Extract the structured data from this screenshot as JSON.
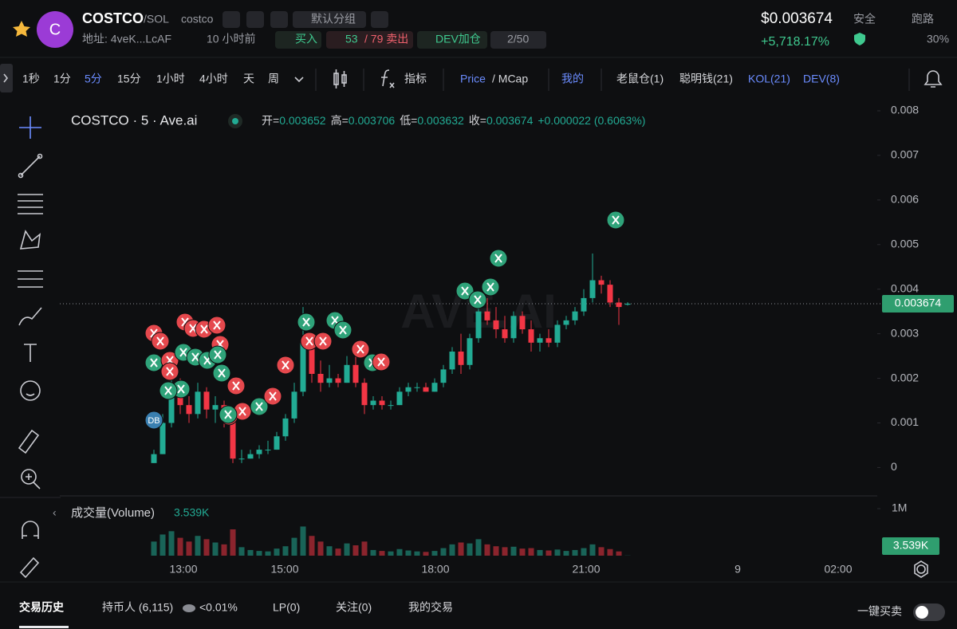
{
  "header": {
    "logo": "C",
    "symbol": "COSTCO",
    "pair": "/SOL",
    "name": "costco",
    "group": "默认分组",
    "address": "地址: 4veK...LcAF",
    "age": "10 小时前",
    "buy": "买入",
    "buys": "53",
    "sells": "/ 79 卖出",
    "dev": "DEV加仓",
    "holders_ratio": "2/50",
    "price": "$0.003674",
    "change": "+5,718.17%",
    "safety": "安全",
    "rug": "跑路",
    "rug_pct": "30%"
  },
  "toolbar": {
    "intervals": [
      "1秒",
      "1分",
      "5分",
      "15分",
      "1小时",
      "4小时",
      "天",
      "周"
    ],
    "active_interval": 2,
    "indicators": "指标",
    "price": "Price",
    "mcap": "/ MCap",
    "mine": "我的",
    "filters": [
      "老鼠仓(1)",
      "聪明钱(21)",
      "KOL(21)",
      "DEV(8)"
    ]
  },
  "chart": {
    "type": "candlestick",
    "title": "COSTCO · 5 · Ave.ai",
    "watermark": "AVE.AI",
    "legend_labels": [
      "开=",
      "高=",
      "低=",
      "收="
    ],
    "legend_change": "+0.000022 (0.6063%)",
    "up_color": "#22ab94",
    "down_color": "#f23645",
    "ylim": [
      -0.0006,
      0.00825
    ],
    "yticks": [
      0.008,
      0.007,
      0.006,
      0.005,
      0.004,
      0.003,
      0.002,
      0.001,
      0
    ],
    "xticks": [
      "13:00",
      "15:00",
      "18:00",
      "21:00",
      "9",
      "02:00"
    ],
    "marker_label": "DB",
    "candles": [
      [
        0.0001,
        0.0004,
        0.0001,
        0.0003
      ],
      [
        0.0003,
        0.0012,
        0.0003,
        0.001
      ],
      [
        0.001,
        0.0021,
        0.0009,
        0.0018
      ],
      [
        0.0018,
        0.002,
        0.0012,
        0.0014
      ],
      [
        0.0014,
        0.0016,
        0.001,
        0.0012
      ],
      [
        0.0012,
        0.0019,
        0.0011,
        0.0017
      ],
      [
        0.0017,
        0.0018,
        0.0011,
        0.0013
      ],
      [
        0.0013,
        0.0016,
        0.001,
        0.0014
      ],
      [
        0.0014,
        0.0015,
        0.0009,
        0.0011
      ],
      [
        0.0011,
        0.0012,
        0.0001,
        0.0002
      ],
      [
        0.0002,
        0.0004,
        0.0001,
        0.0002
      ],
      [
        0.0002,
        0.0004,
        0.0002,
        0.0003
      ],
      [
        0.0003,
        0.0005,
        0.0002,
        0.0004
      ],
      [
        0.0004,
        0.0006,
        0.0003,
        0.0004
      ],
      [
        0.0004,
        0.0008,
        0.0004,
        0.0007
      ],
      [
        0.0007,
        0.0012,
        0.0006,
        0.0011
      ],
      [
        0.0011,
        0.0019,
        0.001,
        0.0017
      ],
      [
        0.0017,
        0.0036,
        0.0016,
        0.0028
      ],
      [
        0.0028,
        0.003,
        0.0019,
        0.0021
      ],
      [
        0.0021,
        0.0024,
        0.0017,
        0.0019
      ],
      [
        0.0019,
        0.0023,
        0.0018,
        0.002
      ],
      [
        0.002,
        0.0021,
        0.0018,
        0.0019
      ],
      [
        0.0019,
        0.0025,
        0.0019,
        0.0023
      ],
      [
        0.0023,
        0.0025,
        0.0018,
        0.0019
      ],
      [
        0.0019,
        0.002,
        0.0012,
        0.0014
      ],
      [
        0.0014,
        0.0016,
        0.0013,
        0.0015
      ],
      [
        0.0015,
        0.0016,
        0.0013,
        0.0014
      ],
      [
        0.0014,
        0.0015,
        0.0013,
        0.0014
      ],
      [
        0.0014,
        0.0018,
        0.0014,
        0.0017
      ],
      [
        0.0017,
        0.0019,
        0.0016,
        0.0018
      ],
      [
        0.0018,
        0.0019,
        0.0017,
        0.0018
      ],
      [
        0.0018,
        0.0019,
        0.0017,
        0.0017
      ],
      [
        0.0017,
        0.002,
        0.0017,
        0.0019
      ],
      [
        0.0019,
        0.0023,
        0.0018,
        0.0022
      ],
      [
        0.0022,
        0.0027,
        0.0021,
        0.0026
      ],
      [
        0.0026,
        0.003,
        0.0021,
        0.0023
      ],
      [
        0.0023,
        0.003,
        0.0022,
        0.0029
      ],
      [
        0.0029,
        0.0037,
        0.0028,
        0.0035
      ],
      [
        0.0035,
        0.0038,
        0.0032,
        0.0033
      ],
      [
        0.0033,
        0.0036,
        0.0029,
        0.0031
      ],
      [
        0.0031,
        0.0034,
        0.0028,
        0.0029
      ],
      [
        0.0029,
        0.0035,
        0.0028,
        0.0034
      ],
      [
        0.0034,
        0.0035,
        0.003,
        0.0031
      ],
      [
        0.0031,
        0.0033,
        0.0026,
        0.0028
      ],
      [
        0.0028,
        0.003,
        0.0026,
        0.0029
      ],
      [
        0.0029,
        0.0031,
        0.0027,
        0.0028
      ],
      [
        0.0028,
        0.0033,
        0.0027,
        0.0032
      ],
      [
        0.0032,
        0.0034,
        0.0031,
        0.0033
      ],
      [
        0.0033,
        0.0036,
        0.0032,
        0.0035
      ],
      [
        0.0035,
        0.004,
        0.0034,
        0.0038
      ],
      [
        0.0038,
        0.0048,
        0.0037,
        0.0042
      ],
      [
        0.0042,
        0.0043,
        0.0039,
        0.0041
      ],
      [
        0.0041,
        0.0042,
        0.0036,
        0.0037
      ],
      [
        0.0037,
        0.0038,
        0.0032,
        0.0036
      ],
      [
        0.003652,
        0.003706,
        0.003632,
        0.003674
      ]
    ],
    "volume_title": "成交量(Volume)",
    "volume_last_label": "3.539K",
    "volume_ylim": [
      0,
      1170000
    ],
    "volume_yticks": [
      {
        "value": 1000000,
        "label": "1M"
      }
    ],
    "volume": [
      300000,
      450000,
      520000,
      380000,
      300000,
      420000,
      350000,
      280000,
      240000,
      560000,
      180000,
      120000,
      100000,
      90000,
      150000,
      200000,
      380000,
      620000,
      420000,
      300000,
      200000,
      150000,
      260000,
      220000,
      300000,
      120000,
      100000,
      90000,
      140000,
      110000,
      90000,
      80000,
      100000,
      160000,
      240000,
      280000,
      260000,
      350000,
      240000,
      200000,
      180000,
      190000,
      150000,
      160000,
      120000,
      110000,
      130000,
      100000,
      120000,
      160000,
      240000,
      180000,
      140000,
      90000,
      3539
    ]
  },
  "tabs": [
    "交易历史",
    "持币人 (6,115)",
    "LP(0)",
    "关注(0)",
    "我的交易"
  ],
  "holder_share": "<0.01%",
  "quick_trade": "一键买卖"
}
